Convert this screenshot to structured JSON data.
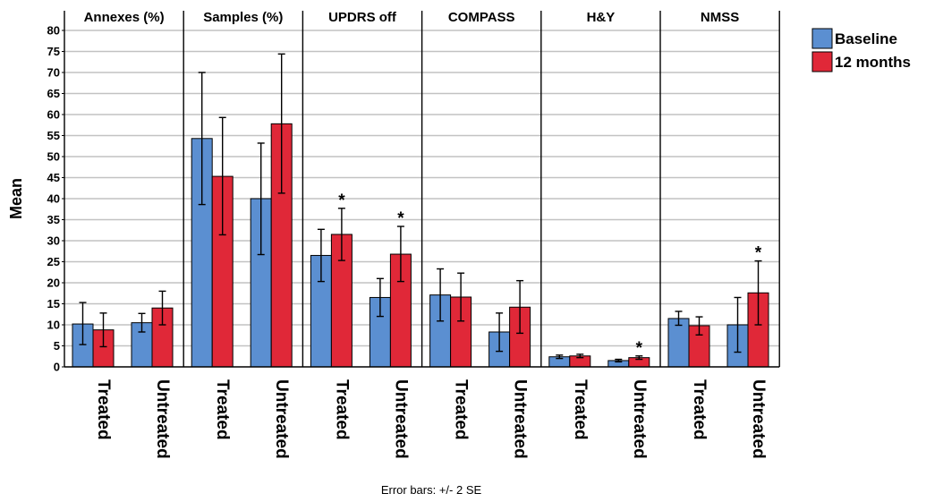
{
  "chart_data": {
    "type": "bar",
    "ylabel": "Mean",
    "ylim": [
      0,
      80
    ],
    "yticks": [
      0,
      5,
      10,
      15,
      20,
      25,
      30,
      35,
      40,
      45,
      50,
      55,
      60,
      65,
      70,
      75,
      80
    ],
    "grid": true,
    "legend_position": "top-right",
    "footnote": "Error bars: +/- 2 SE",
    "colors": {
      "Baseline": "#5b8fd1",
      "12 months": "#e02838"
    },
    "series": [
      {
        "name": "Baseline"
      },
      {
        "name": "12 months"
      }
    ],
    "categories": [
      "Treated",
      "Untreated"
    ],
    "panels": [
      {
        "title": "Annexes (%)",
        "values": {
          "Treated": [
            10.2,
            8.8
          ],
          "Untreated": [
            10.5,
            14.0
          ]
        },
        "errors": {
          "Treated": [
            [
              5.3,
              15.3
            ],
            [
              4.8,
              12.8
            ]
          ],
          "Untreated": [
            [
              8.3,
              12.7
            ],
            [
              10.0,
              18.0
            ]
          ]
        },
        "significant": {
          "Treated": false,
          "Untreated": false
        }
      },
      {
        "title": "Samples (%)",
        "values": {
          "Treated": [
            54.3,
            45.3
          ],
          "Untreated": [
            40.0,
            57.8
          ]
        },
        "errors": {
          "Treated": [
            [
              38.6,
              70.0
            ],
            [
              31.4,
              59.3
            ]
          ],
          "Untreated": [
            [
              26.7,
              53.2
            ],
            [
              41.3,
              74.4
            ]
          ]
        },
        "significant": {
          "Treated": false,
          "Untreated": false
        }
      },
      {
        "title": "UPDRS off",
        "values": {
          "Treated": [
            26.5,
            31.5
          ],
          "Untreated": [
            16.5,
            26.8
          ]
        },
        "errors": {
          "Treated": [
            [
              20.3,
              32.7
            ],
            [
              25.3,
              37.7
            ]
          ],
          "Untreated": [
            [
              12.0,
              21.0
            ],
            [
              20.3,
              33.4
            ]
          ]
        },
        "significant": {
          "Treated": true,
          "Untreated": true
        }
      },
      {
        "title": "COMPASS",
        "values": {
          "Treated": [
            17.1,
            16.6
          ],
          "Untreated": [
            8.3,
            14.2
          ]
        },
        "errors": {
          "Treated": [
            [
              10.9,
              23.3
            ],
            [
              10.9,
              22.3
            ]
          ],
          "Untreated": [
            [
              3.7,
              12.8
            ],
            [
              8.0,
              20.5
            ]
          ]
        },
        "significant": {
          "Treated": false,
          "Untreated": false
        }
      },
      {
        "title": "H&Y",
        "values": {
          "Treated": [
            2.4,
            2.6
          ],
          "Untreated": [
            1.5,
            2.2
          ]
        },
        "errors": {
          "Treated": [
            [
              2.0,
              2.8
            ],
            [
              2.2,
              3.0
            ]
          ],
          "Untreated": [
            [
              1.2,
              1.8
            ],
            [
              1.8,
              2.6
            ]
          ]
        },
        "significant": {
          "Treated": false,
          "Untreated": true
        }
      },
      {
        "title": "NMSS",
        "values": {
          "Treated": [
            11.5,
            9.8
          ],
          "Untreated": [
            10.0,
            17.6
          ]
        },
        "errors": {
          "Treated": [
            [
              9.9,
              13.2
            ],
            [
              7.6,
              11.9
            ]
          ],
          "Untreated": [
            [
              3.5,
              16.5
            ],
            [
              10.0,
              25.2
            ]
          ]
        },
        "significant": {
          "Treated": false,
          "Untreated": true
        }
      }
    ],
    "significance_marker": "*"
  }
}
